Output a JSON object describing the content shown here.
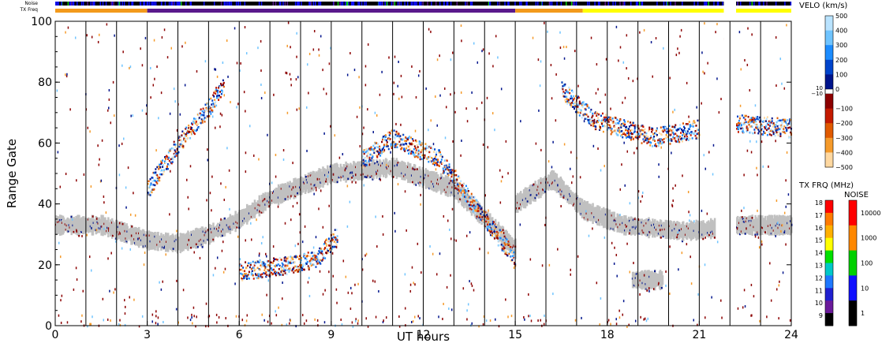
{
  "chart_data": {
    "type": "heatmap",
    "xlabel": "UT hours",
    "ylabel": "Range Gate",
    "xlim": [
      0,
      24
    ],
    "ylim": [
      0,
      100
    ],
    "x_ticks": [
      "0",
      "3",
      "6",
      "9",
      "12",
      "15",
      "18",
      "21",
      "24"
    ],
    "y_ticks": [
      "0",
      "20",
      "40",
      "60",
      "80",
      "100"
    ],
    "scan_lines_ut": [
      1.0,
      2.0,
      3.0,
      4.0,
      5.0,
      6.0,
      7.0,
      8.0,
      9.0,
      10.0,
      11.0,
      12.0,
      13.0,
      14.0,
      15.0,
      16.0,
      17.0,
      18.0,
      19.0,
      20.0,
      21.0,
      22.0,
      23.0
    ],
    "data_gap_ut": [
      21.8,
      22.2
    ],
    "status_bars": {
      "noise_label": "Noise",
      "txfreq_label": "TX Freq",
      "txfreq_segments": [
        {
          "start": 0,
          "end": 3,
          "color": "#f39a1c"
        },
        {
          "start": 3,
          "end": 15,
          "color": "#5a1a8c"
        },
        {
          "start": 15,
          "end": 17.2,
          "color": "#f39a1c"
        },
        {
          "start": 17.2,
          "end": 21.8,
          "color": "#ffff00"
        },
        {
          "start": 22.2,
          "end": 24,
          "color": "#ffff00"
        }
      ]
    },
    "velocity_colorbar": {
      "title": "VELO (km/s)",
      "unit": "km/s",
      "ticks": [
        "500",
        "400",
        "300",
        "200",
        "100",
        "0",
        "−100",
        "−200",
        "−300",
        "−400",
        "−500"
      ],
      "mid_labels": [
        "10",
        "−10"
      ],
      "colors": [
        "#b9e3ff",
        "#6fc4ff",
        "#1c8cff",
        "#0044cc",
        "#00148c",
        "#ffffff",
        "#8c0000",
        "#c41a00",
        "#e05a00",
        "#f59a2a",
        "#ffd8a0"
      ]
    },
    "txfreq_colorbar": {
      "title": "TX FRQ (MHz)",
      "ticks": [
        "18",
        "17",
        "16",
        "15",
        "14",
        "13",
        "12",
        "11",
        "10",
        "9"
      ],
      "colors": [
        "#ff0000",
        "#ff7a00",
        "#ffb000",
        "#ffff00",
        "#00e000",
        "#00c8c8",
        "#1e78ff",
        "#2020d0",
        "#6a1a9a",
        "#000000"
      ]
    },
    "noise_colorbar": {
      "title": "NOISE",
      "ticks": [
        "10000",
        "1000",
        "100",
        "10",
        "1"
      ],
      "colors": [
        "#ff0000",
        "#ff8800",
        "#00d000",
        "#1010ff",
        "#000000"
      ]
    },
    "ground_scatter_color": "#c0c0c0",
    "echo_bands": [
      {
        "name": "ground-scatter",
        "points": [
          [
            0,
            33
          ],
          [
            1.5,
            33
          ],
          [
            3,
            28
          ],
          [
            4,
            27
          ],
          [
            5,
            30
          ],
          [
            6,
            35
          ],
          [
            7,
            42
          ],
          [
            9,
            50
          ],
          [
            11,
            52
          ],
          [
            13,
            45
          ],
          [
            14.5,
            30
          ],
          [
            15,
            25
          ]
        ]
      },
      {
        "name": "ground-scatter",
        "points": [
          [
            15,
            40
          ],
          [
            16.2,
            48
          ],
          [
            17.2,
            38
          ],
          [
            18.5,
            33
          ],
          [
            20.5,
            31
          ],
          [
            21.5,
            32
          ]
        ]
      },
      {
        "name": "ground-scatter",
        "points": [
          [
            22.2,
            33
          ],
          [
            24,
            33
          ]
        ]
      },
      {
        "name": "ground-scatter",
        "points": [
          [
            18.8,
            15
          ],
          [
            19.8,
            15
          ]
        ]
      },
      {
        "name": "ionospheric",
        "points": [
          [
            3,
            45
          ],
          [
            4,
            60
          ],
          [
            5,
            72
          ],
          [
            5.5,
            80
          ]
        ]
      },
      {
        "name": "ionospheric",
        "points": [
          [
            6,
            18
          ],
          [
            7.5,
            20
          ],
          [
            8.5,
            22
          ],
          [
            9.2,
            30
          ]
        ]
      },
      {
        "name": "ionospheric",
        "points": [
          [
            10,
            55
          ],
          [
            11,
            62
          ],
          [
            12.5,
            55
          ],
          [
            14,
            35
          ],
          [
            15,
            22
          ]
        ]
      },
      {
        "name": "ionospheric",
        "points": [
          [
            16.5,
            78
          ],
          [
            17.5,
            68
          ],
          [
            19.5,
            62
          ],
          [
            21,
            65
          ]
        ]
      },
      {
        "name": "ionospheric",
        "points": [
          [
            22.2,
            67
          ],
          [
            24,
            65
          ]
        ]
      }
    ]
  }
}
